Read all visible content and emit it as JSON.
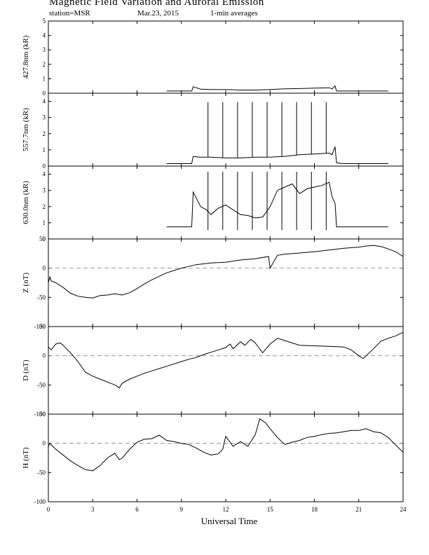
{
  "header": {
    "title": "Magnetic Field Variation and Auroral Emission",
    "station": "station=MSR",
    "date": "Mar.23, 2015",
    "averaging": "1-min averages"
  },
  "chart_data": {
    "type": "line",
    "xlabel": "Universal Time",
    "xlim": [
      0,
      24
    ],
    "xticks": [
      0,
      3,
      6,
      9,
      12,
      15,
      18,
      21,
      24
    ],
    "panels": [
      {
        "id": "p4278",
        "ylabel": "427.8nm (kR)",
        "ylim": [
          0,
          5
        ],
        "yticks": [
          0,
          1,
          2,
          3,
          4,
          5
        ],
        "zero_line": false,
        "series": [
          {
            "x": [
              8.0,
              9.0,
              9.7,
              9.8,
              10.3,
              11,
              12,
              13,
              14,
              15,
              16,
              17,
              18,
              19,
              19.2,
              19.4,
              19.5,
              20,
              21,
              22,
              23
            ],
            "y": [
              0.15,
              0.15,
              0.15,
              0.45,
              0.28,
              0.25,
              0.25,
              0.22,
              0.22,
              0.25,
              0.3,
              0.32,
              0.35,
              0.38,
              0.3,
              0.5,
              0.15,
              0.15,
              0.15,
              0.15,
              0.15
            ]
          }
        ]
      },
      {
        "id": "p5577",
        "ylabel": "557.7nm (kR)",
        "ylim": [
          0,
          4.5
        ],
        "yticks": [
          0,
          1,
          2,
          3,
          4
        ],
        "zero_line": false,
        "series": [
          {
            "x": [
              8.0,
              9.0,
              9.7,
              9.8,
              10.2,
              11,
              12,
              13,
              14,
              15,
              16,
              17,
              18,
              19,
              19.2,
              19.4,
              19.5,
              20,
              21,
              22,
              23
            ],
            "y": [
              0.15,
              0.15,
              0.15,
              0.6,
              0.55,
              0.55,
              0.5,
              0.5,
              0.55,
              0.55,
              0.6,
              0.7,
              0.75,
              0.8,
              0.7,
              1.2,
              0.2,
              0.15,
              0.15,
              0.15,
              0.15
            ]
          }
        ],
        "spikes": {
          "x": [
            10.8,
            11.8,
            12.8,
            13.8,
            14.8,
            15.8,
            16.8,
            17.8,
            18.8
          ],
          "peak": 3.95
        }
      },
      {
        "id": "p6300",
        "ylabel": "630.0nm (kR)",
        "ylim": [
          0,
          4.5
        ],
        "yticks": [
          0,
          1,
          2,
          3,
          4
        ],
        "zero_line": false,
        "series": [
          {
            "x": [
              8.0,
              9.0,
              9.7,
              9.8,
              10.3,
              10.7,
              11,
              11.5,
              12,
              12.5,
              13,
              13.5,
              14,
              14.5,
              15,
              15.5,
              16,
              16.5,
              17,
              17.5,
              18,
              18.5,
              19,
              19.2,
              19.4,
              19.5,
              20,
              21,
              22,
              23
            ],
            "y": [
              0.75,
              0.75,
              0.75,
              2.9,
              2.0,
              1.8,
              1.5,
              1.9,
              2.1,
              1.8,
              1.5,
              1.45,
              1.3,
              1.35,
              2.0,
              3.0,
              3.2,
              3.4,
              2.8,
              3.1,
              3.2,
              3.3,
              3.5,
              2.6,
              2.2,
              0.75,
              0.75,
              0.75,
              0.75,
              0.75
            ]
          }
        ],
        "spikes": {
          "x": [
            10.8,
            11.8,
            12.8,
            13.8,
            14.8,
            15.8,
            16.8,
            17.8,
            18.8
          ],
          "peak": 4.15,
          "trough": 0.55
        }
      },
      {
        "id": "pZ",
        "ylabel": "Z (nT)",
        "ylim": [
          -100,
          50
        ],
        "yticks": [
          -100,
          -50,
          0,
          50
        ],
        "zero_line": true,
        "series": [
          {
            "x": [
              0,
              0.1,
              0.2,
              0.5,
              1,
              1.5,
              2,
              2.5,
              3,
              3.5,
              4,
              4.5,
              5,
              5.5,
              6,
              6.5,
              7,
              7.5,
              8,
              8.5,
              9,
              9.5,
              10,
              11,
              12,
              13,
              14,
              14.9,
              15,
              15.5,
              16,
              17,
              18,
              19,
              20,
              21,
              21.5,
              22,
              22.5,
              23,
              23.5,
              24
            ],
            "y": [
              -25,
              -15,
              -22,
              -25,
              -33,
              -43,
              -48,
              -50,
              -51,
              -47,
              -46,
              -44,
              -46,
              -42,
              -35,
              -27,
              -20,
              -14,
              -8,
              -4,
              0,
              3,
              6,
              9,
              10,
              14,
              16,
              20,
              0,
              22,
              24,
              26,
              28,
              31,
              34,
              36,
              38,
              39,
              37,
              33,
              28,
              20
            ]
          }
        ]
      },
      {
        "id": "pD",
        "ylabel": "D (nT)",
        "ylim": [
          -100,
          50
        ],
        "yticks": [
          -100,
          -50,
          0,
          50
        ],
        "zero_line": true,
        "series": [
          {
            "x": [
              0,
              0.2,
              0.5,
              0.8,
              1,
              1.3,
              1.5,
              2,
              2.5,
              3,
              3.5,
              4,
              4.5,
              4.8,
              5,
              5.5,
              6,
              6.5,
              7,
              7.5,
              8,
              8.5,
              9,
              9.5,
              10,
              10.5,
              11,
              11.5,
              12,
              12.3,
              12.5,
              13,
              13.3,
              13.7,
              14,
              14.5,
              15,
              15.5,
              16,
              17,
              18,
              19,
              20,
              20.5,
              21,
              21.3,
              21.5,
              22,
              22.5,
              23,
              23.5,
              24
            ],
            "y": [
              15,
              10,
              20,
              22,
              18,
              10,
              5,
              -10,
              -28,
              -35,
              -40,
              -45,
              -50,
              -55,
              -47,
              -40,
              -35,
              -30,
              -26,
              -22,
              -18,
              -14,
              -10,
              -6,
              -3,
              2,
              6,
              10,
              14,
              20,
              12,
              24,
              18,
              28,
              22,
              5,
              20,
              30,
              26,
              18,
              17,
              16,
              15,
              10,
              0,
              -5,
              0,
              12,
              25,
              30,
              34,
              40
            ]
          }
        ]
      },
      {
        "id": "pH",
        "ylabel": "H (nT)",
        "ylim": [
          -100,
          50
        ],
        "yticks": [
          -100,
          -50,
          0,
          50
        ],
        "zero_line": true,
        "series": [
          {
            "x": [
              0,
              0.1,
              0.5,
              1,
              1.5,
              2,
              2.5,
              3,
              3.5,
              4,
              4.5,
              4.8,
              5,
              5.5,
              6,
              6.5,
              7,
              7.5,
              8,
              8.5,
              9,
              9.5,
              10,
              10.5,
              11,
              11.5,
              11.8,
              12,
              12.5,
              13,
              13.5,
              14,
              14.3,
              14.7,
              15,
              15.5,
              16,
              16.5,
              17,
              17.5,
              18,
              18.5,
              19,
              19.5,
              20,
              20.5,
              21,
              21.5,
              22,
              22.5,
              23,
              23.5,
              24
            ],
            "y": [
              -5,
              0,
              -10,
              -20,
              -30,
              -38,
              -45,
              -47,
              -38,
              -25,
              -17,
              -28,
              -25,
              -10,
              2,
              7,
              8,
              14,
              5,
              3,
              0,
              -2,
              -8,
              -15,
              -20,
              -18,
              -10,
              12,
              -5,
              3,
              -5,
              15,
              42,
              35,
              25,
              10,
              -2,
              2,
              5,
              10,
              12,
              15,
              17,
              18,
              20,
              22,
              22,
              25,
              20,
              18,
              10,
              -3,
              -15
            ]
          }
        ]
      }
    ]
  }
}
